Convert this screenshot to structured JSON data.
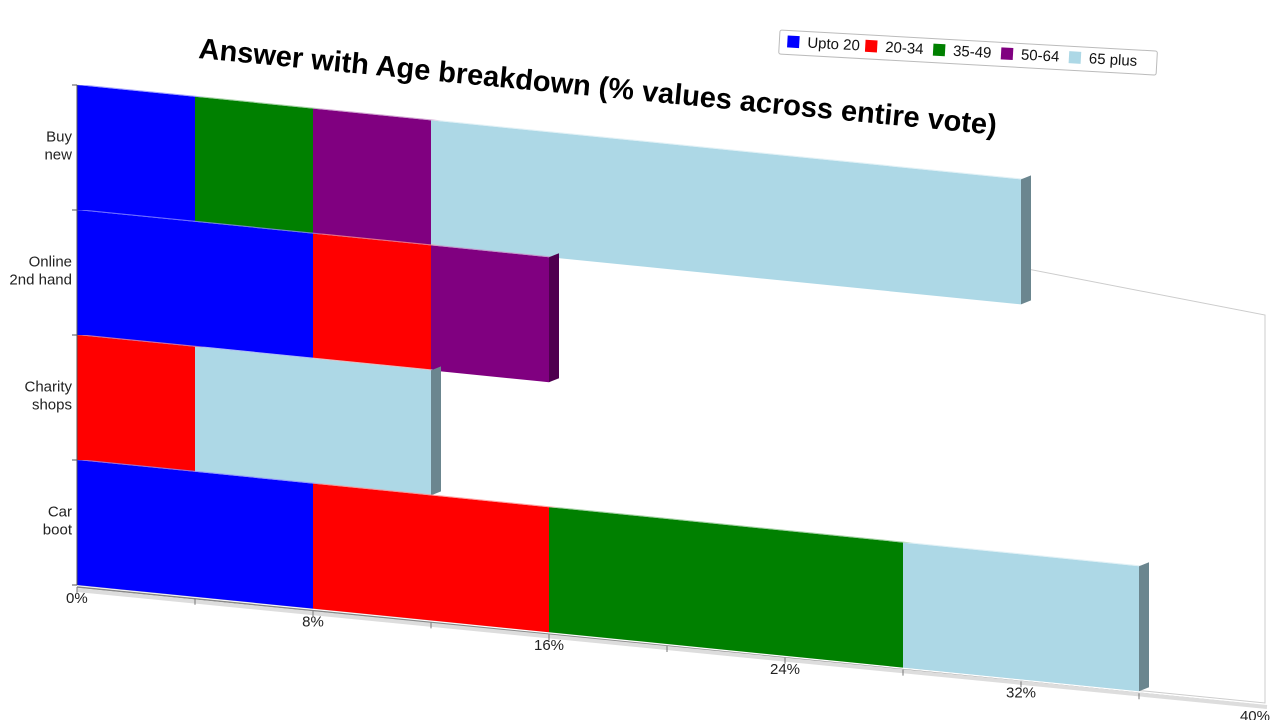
{
  "chart_data": {
    "type": "bar",
    "orientation": "horizontal",
    "stacked": true,
    "title": "Answer with Age breakdown (% values across entire vote)",
    "xlabel": "",
    "ylabel": "",
    "categories": [
      [
        "Buy",
        "new"
      ],
      [
        "Online",
        "2nd hand"
      ],
      [
        "Charity",
        "shops"
      ],
      [
        "Car",
        "boot"
      ]
    ],
    "xlim": [
      0,
      40
    ],
    "x_ticks": [
      "0%",
      "8%",
      "16%",
      "24%",
      "32%",
      "40%"
    ],
    "series": [
      {
        "name": "Upto 20",
        "color": "#0000ff",
        "values": [
          4,
          8,
          0,
          8
        ]
      },
      {
        "name": "20-34",
        "color": "#ff0000",
        "values": [
          0,
          4,
          4,
          8
        ]
      },
      {
        "name": "35-49",
        "color": "#008000",
        "values": [
          4,
          0,
          0,
          12
        ]
      },
      {
        "name": "50-64",
        "color": "#800080",
        "values": [
          4,
          4,
          0,
          0
        ]
      },
      {
        "name": "65 plus",
        "color": "#add8e6",
        "values": [
          20,
          0,
          8,
          8
        ]
      }
    ],
    "legend_position": "top-right",
    "grid": false
  }
}
